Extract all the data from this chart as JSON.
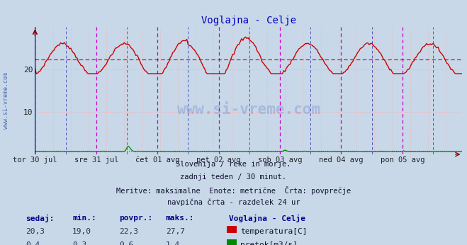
{
  "title": "Voglajna - Celje",
  "fig_bg_color": "#c8d8e8",
  "plot_bg_color": "#c8d8e8",
  "x_tick_labels": [
    "tor 30 jul",
    "sre 31 jul",
    "čet 01 avg",
    "pet 02 avg",
    "sob 03 avg",
    "ned 04 avg",
    "pon 05 avg"
  ],
  "ylim": [
    0,
    30
  ],
  "n_points": 336,
  "avg_line_y": 22.3,
  "temp_color": "#cc0000",
  "flow_color": "#008800",
  "flow_avg_color": "#008800",
  "vline_midnight_color": "#cc00cc",
  "vline_noon_color": "#000099",
  "grid_h_color": "#ffaaaa",
  "avg_line_color": "#cc0000",
  "subtitle_lines": [
    "Slovenija / reke in morje.",
    "zadnji teden / 30 minut.",
    "Meritve: maksimalne  Enote: metrične  Črta: povprečje",
    "navpična črta - razdelek 24 ur"
  ],
  "legend_title": "Voglajna - Celje",
  "legend_items": [
    {
      "label": "temperatura[C]",
      "color": "#cc0000"
    },
    {
      "label": "pretok[m3/s]",
      "color": "#008800"
    }
  ],
  "stats_headers": [
    "sedaj:",
    "min.:",
    "povpr.:",
    "maks.:"
  ],
  "stats_temp": [
    "20,3",
    "19,0",
    "22,3",
    "27,7"
  ],
  "stats_flow": [
    "0,4",
    "0,3",
    "0,6",
    "1,4"
  ],
  "watermark": "www.si-vreme.com",
  "temp_min": 19.0,
  "temp_max": 27.7,
  "temp_avg": 22.3,
  "flow_max": 1.4,
  "flow_avg": 0.6
}
